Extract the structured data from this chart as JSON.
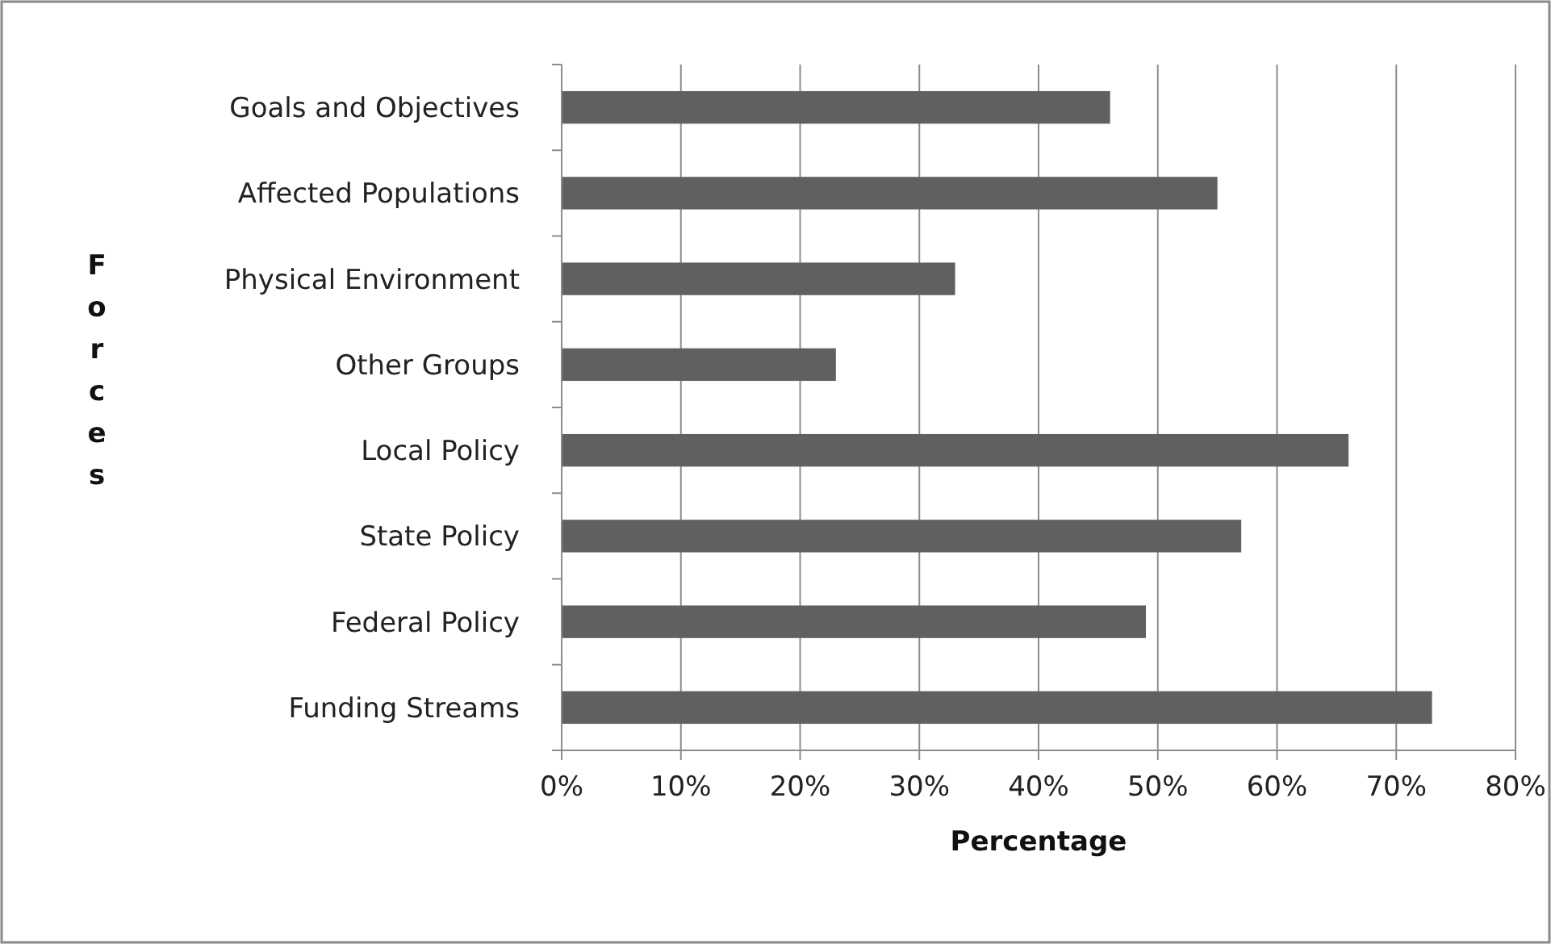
{
  "chart_data": {
    "type": "bar",
    "orientation": "horizontal",
    "xlabel": "Percentage",
    "ylabel": "Forces",
    "categories": [
      "Goals and Objectives",
      "Affected Populations",
      "Physical Environment",
      "Other Groups",
      "Local Policy",
      "State Policy",
      "Federal Policy",
      "Funding Streams"
    ],
    "values": [
      46,
      55,
      33,
      23,
      66,
      57,
      49,
      73
    ],
    "color": "#606060",
    "xlim": [
      0,
      80
    ],
    "xticks": [
      {
        "value": 0,
        "label": "0%"
      },
      {
        "value": 10,
        "label": "10%"
      },
      {
        "value": 20,
        "label": "20%"
      },
      {
        "value": 30,
        "label": "30%"
      },
      {
        "value": 40,
        "label": "40%"
      },
      {
        "value": 50,
        "label": "50%"
      },
      {
        "value": 60,
        "label": "60%"
      },
      {
        "value": 70,
        "label": "70%"
      },
      {
        "value": 80,
        "label": "80%"
      }
    ],
    "grid": "x"
  }
}
